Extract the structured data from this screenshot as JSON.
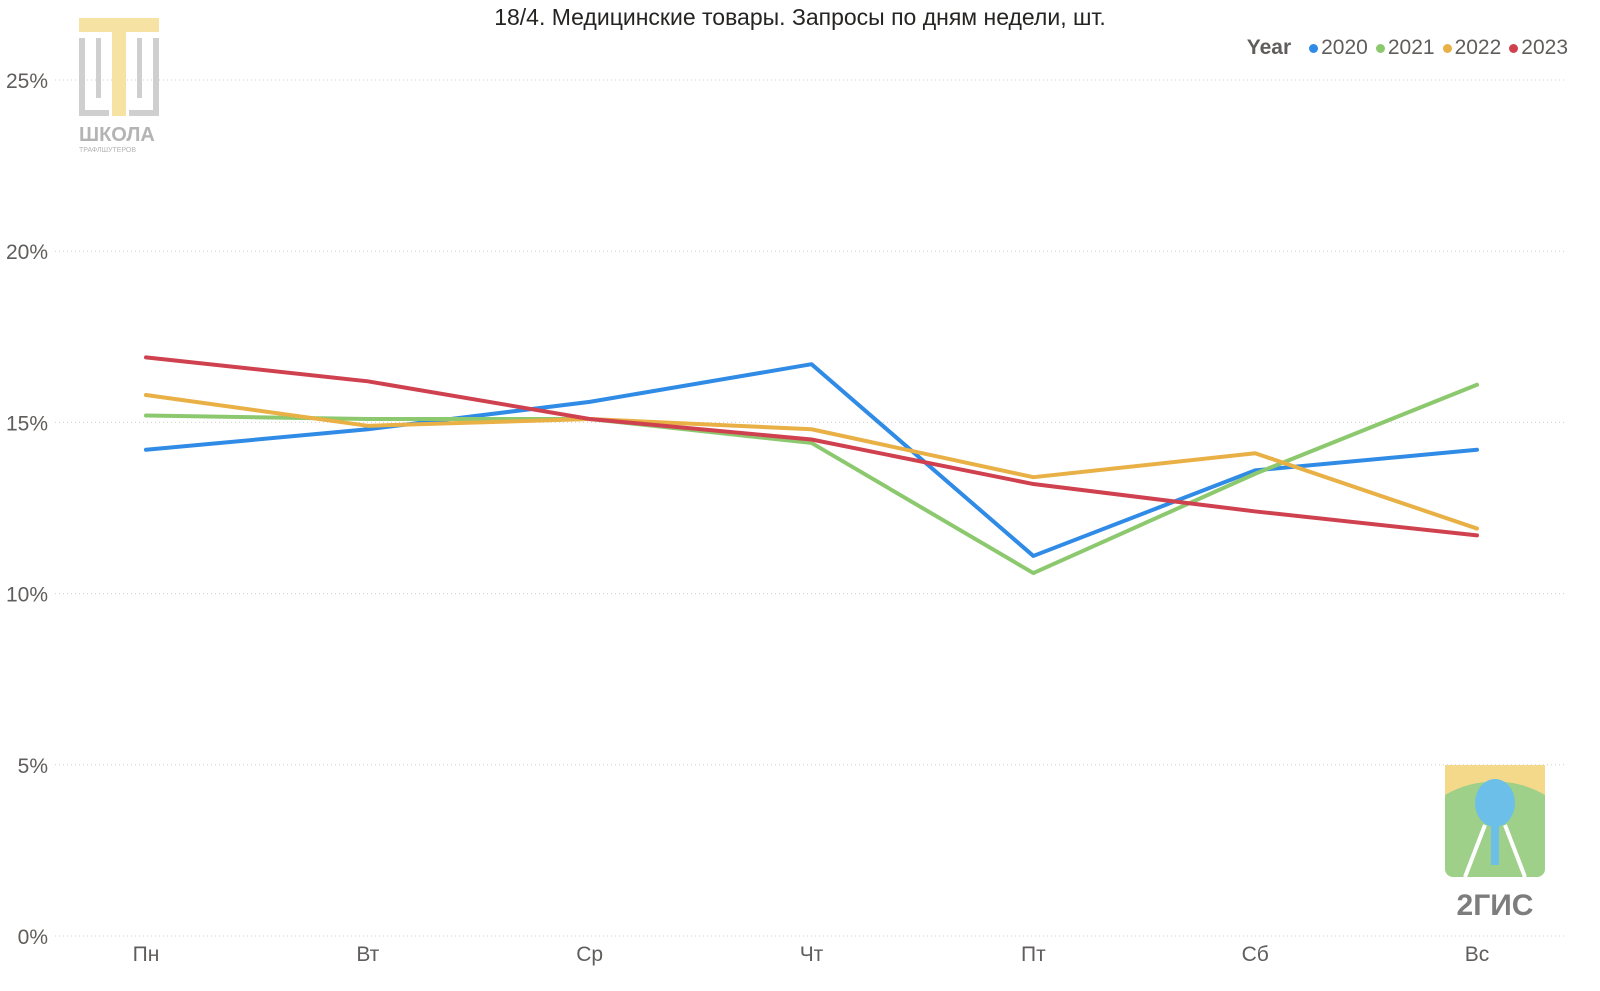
{
  "chart_data": {
    "type": "line",
    "title": "18/4. Медицинские товары. Запросы по дням недели, шт.",
    "xlabel": "",
    "ylabel": "",
    "categories": [
      "Пн",
      "Вт",
      "Ср",
      "Чт",
      "Пт",
      "Сб",
      "Вс"
    ],
    "ylim": [
      0,
      25
    ],
    "yticks": [
      "0%",
      "5%",
      "10%",
      "15%",
      "20%",
      "25%"
    ],
    "ytick_values": [
      0,
      5,
      10,
      15,
      20,
      25
    ],
    "grid": true,
    "legend": {
      "title": "Year",
      "placement": "top-right"
    },
    "series": [
      {
        "name": "2020",
        "color": "#2f8be6",
        "values": [
          14.2,
          14.8,
          15.6,
          16.7,
          11.1,
          13.6,
          14.2
        ]
      },
      {
        "name": "2021",
        "color": "#8cc96e",
        "values": [
          15.2,
          15.1,
          15.1,
          14.4,
          10.6,
          13.5,
          16.1
        ]
      },
      {
        "name": "2022",
        "color": "#e8b045",
        "values": [
          15.8,
          14.9,
          15.1,
          14.8,
          13.4,
          14.1,
          11.9
        ]
      },
      {
        "name": "2023",
        "color": "#d0414f",
        "values": [
          16.9,
          16.2,
          15.1,
          14.5,
          13.2,
          12.4,
          11.7
        ]
      }
    ]
  },
  "logos": {
    "school": {
      "name": "ШКОЛА",
      "subtitle": "ТРАФЛШУТЕРОВ",
      "icon": "school-logo-icon"
    },
    "twogis": {
      "name": "2ГИС",
      "icon": "2gis-logo-icon"
    }
  }
}
